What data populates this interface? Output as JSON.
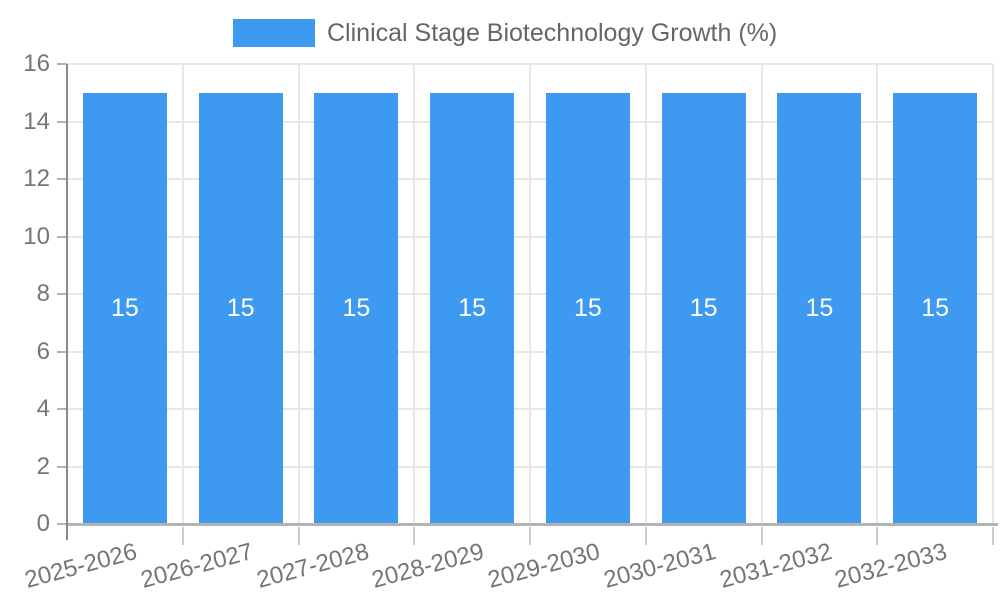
{
  "chart_data": {
    "type": "bar",
    "title": "Clinical Stage Biotechnology Growth (%)",
    "legend": {
      "position": "top",
      "label": "Clinical Stage Biotechnology Growth (%)"
    },
    "categories": [
      "2025-2026",
      "2026-2027",
      "2027-2028",
      "2028-2029",
      "2029-2030",
      "2030-2031",
      "2031-2032",
      "2032-2033"
    ],
    "series": [
      {
        "name": "Clinical Stage Biotechnology Growth (%)",
        "values": [
          15,
          15,
          15,
          15,
          15,
          15,
          15,
          15
        ]
      }
    ],
    "bar_value_labels": [
      "15",
      "15",
      "15",
      "15",
      "15",
      "15",
      "15",
      "15"
    ],
    "xlabel": "",
    "ylabel": "",
    "ylim": [
      0,
      16
    ],
    "yticks": [
      0,
      2,
      4,
      6,
      8,
      10,
      12,
      14,
      16
    ],
    "grid": true,
    "colors": {
      "bar": "#3e9af0",
      "bar_label": "#ffffff",
      "legend_text": "#666666",
      "tick_text": "#757575",
      "gridline": "#e8e8e8",
      "axis_line": "#8a8a8a",
      "baseline": "#b3b3b3",
      "minor_tick": "#cccccc",
      "background": "#ffffff"
    }
  }
}
